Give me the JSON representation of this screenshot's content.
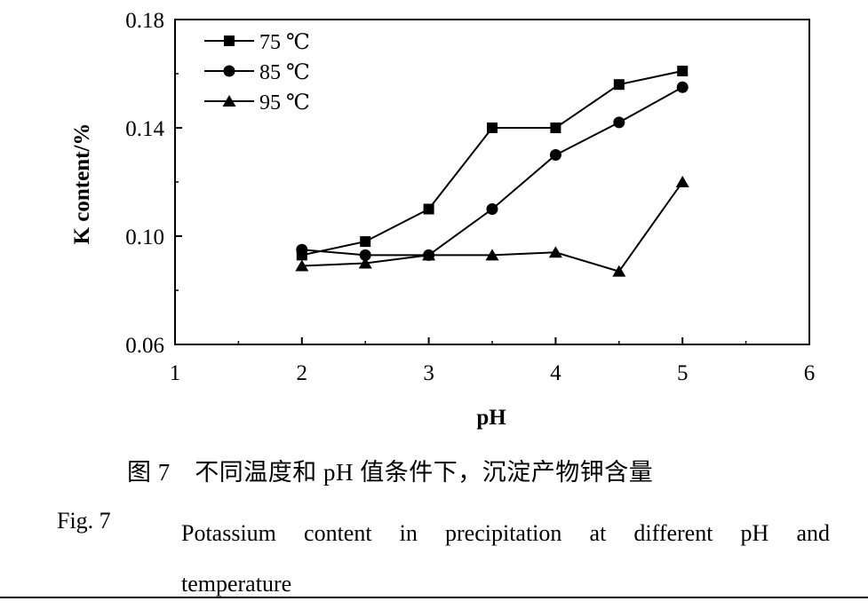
{
  "chart_data": {
    "type": "line",
    "xlabel": "pH",
    "ylabel": "K content/%",
    "xlim": [
      1,
      6
    ],
    "ylim": [
      0.06,
      0.18
    ],
    "xticks": [
      "1",
      "2",
      "3",
      "4",
      "5",
      "6"
    ],
    "yticks": [
      "0.06",
      "0.10",
      "0.14",
      "0.18"
    ],
    "x": [
      2,
      2.5,
      3,
      3.5,
      4,
      4.5,
      5
    ],
    "series": [
      {
        "name": "75 ℃",
        "marker": "square",
        "values": [
          0.093,
          0.098,
          0.11,
          0.14,
          0.14,
          0.156,
          0.161
        ]
      },
      {
        "name": "85 ℃",
        "marker": "circle",
        "values": [
          0.095,
          0.093,
          0.093,
          0.11,
          0.13,
          0.142,
          0.155
        ]
      },
      {
        "name": "95 ℃",
        "marker": "triangle",
        "values": [
          0.089,
          0.09,
          0.093,
          0.093,
          0.094,
          0.087,
          0.12
        ]
      }
    ],
    "legend_position": "top-left",
    "grid": false,
    "line_color": "#000000"
  },
  "caption": {
    "zh": "图 7　不同温度和 pH 值条件下，沉淀产物钾含量",
    "en_label": "Fig. 7",
    "en_text": "Potassium content in precipitation at different pH and temperature"
  }
}
